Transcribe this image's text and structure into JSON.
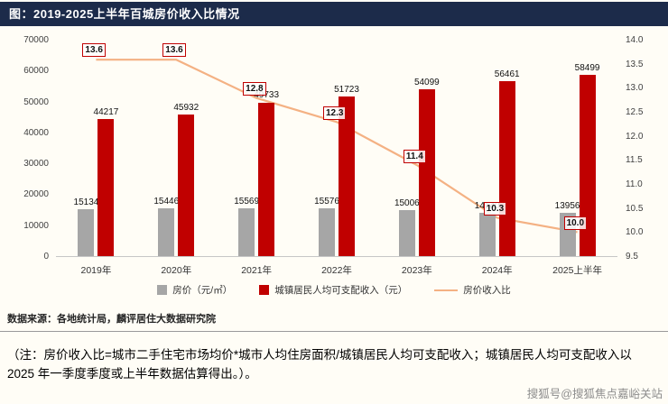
{
  "header": {
    "title": "图：2019-2025上半年百城房价收入比情况"
  },
  "colors": {
    "title_bar": "#1c2b4a",
    "house_price_bar": "#a6a6a6",
    "income_bar": "#c00000",
    "ratio_line": "#f4b183"
  },
  "chart_data": {
    "type": "bar",
    "categories": [
      "2019年",
      "2020年",
      "2021年",
      "2022年",
      "2023年",
      "2024年",
      "2025上半年"
    ],
    "series": [
      {
        "name": "房价（元/㎡）",
        "type": "bar",
        "axis": "left",
        "color": "#a6a6a6",
        "values": [
          15134,
          15446,
          15569,
          15576,
          15006,
          14140,
          13956
        ]
      },
      {
        "name": "城镇居民人均可支配收入（元）",
        "type": "bar",
        "axis": "left",
        "color": "#c00000",
        "values": [
          44217,
          45932,
          49733,
          51723,
          54099,
          56461,
          58499
        ]
      },
      {
        "name": "房价收入比",
        "type": "line",
        "axis": "right",
        "color": "#f4b183",
        "values": [
          13.6,
          13.6,
          12.8,
          12.3,
          11.4,
          10.3,
          10.0
        ]
      }
    ],
    "left_axis": {
      "min": 0,
      "max": 70000,
      "step": 10000,
      "ticks": [
        "70000",
        "60000",
        "50000",
        "40000",
        "30000",
        "20000",
        "10000",
        "0"
      ]
    },
    "right_axis": {
      "min": 9.5,
      "max": 14.0,
      "step": 0.5,
      "ticks": [
        "14.0",
        "13.5",
        "13.0",
        "12.5",
        "12.0",
        "11.5",
        "11.0",
        "10.5",
        "10.0",
        "9.5"
      ]
    },
    "grid": false,
    "legend_position": "bottom",
    "title": "图：2019-2025上半年百城房价收入比情况"
  },
  "legend": [
    {
      "label": "房价（元/㎡）",
      "color": "#a6a6a6",
      "type": "bar"
    },
    {
      "label": "城镇居民人均可支配收入（元）",
      "color": "#c00000",
      "type": "bar"
    },
    {
      "label": "房价收入比",
      "color": "#f4b183",
      "type": "line"
    }
  ],
  "source": "数据来源：各地统计局，麟评居住大数据研究院",
  "note": "（注：房价收入比=城市二手住宅市场均价*城市人均住房面积/城镇居民人均可支配收入；城镇居民人均可支配收入以 2025 年一季度季度或上半年数据估算得出。）。",
  "watermark": "搜狐号@搜狐焦点嘉峪关站"
}
